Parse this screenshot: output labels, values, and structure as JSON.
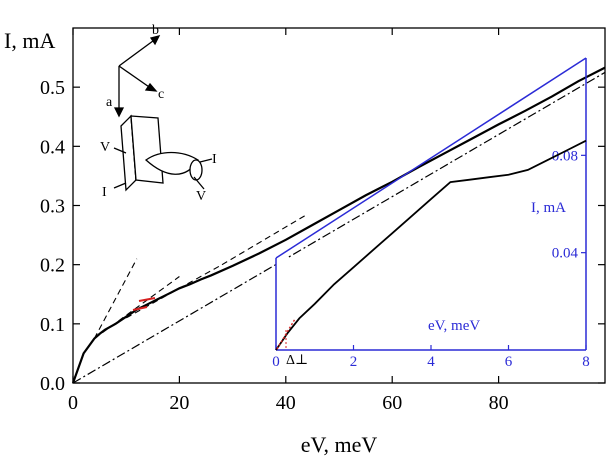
{
  "chart_data": [
    {
      "type": "line",
      "xlabel": "eV, meV",
      "ylabel": "I, mA",
      "xlim": [
        0,
        100
      ],
      "ylim": [
        0,
        0.6
      ],
      "x_ticks": [
        "0",
        "20",
        "40",
        "60",
        "80"
      ],
      "y_ticks": [
        "0.0",
        "0.1",
        "0.2",
        "0.3",
        "0.4",
        "0.5"
      ],
      "series": [
        {
          "style": "solid",
          "x": [
            0,
            2,
            4,
            5,
            6,
            8,
            10,
            12,
            14,
            16,
            18,
            20,
            22,
            24,
            26,
            30,
            35,
            40,
            45,
            50,
            55,
            60,
            65,
            70,
            75,
            80,
            85,
            90,
            95,
            100
          ],
          "y": [
            0,
            0.05,
            0.075,
            0.083,
            0.09,
            0.1,
            0.112,
            0.124,
            0.133,
            0.142,
            0.151,
            0.16,
            0.167,
            0.175,
            0.182,
            0.198,
            0.219,
            0.242,
            0.267,
            0.292,
            0.317,
            0.34,
            0.365,
            0.389,
            0.413,
            0.437,
            0.46,
            0.484,
            0.51,
            0.533
          ]
        },
        {
          "style": "dash-dot",
          "x": [
            0,
            100
          ],
          "y": [
            0,
            0.525
          ]
        },
        {
          "style": "dashed",
          "x": [
            4,
            12
          ],
          "y": [
            0.075,
            0.21
          ]
        },
        {
          "style": "dashed",
          "x": [
            4,
            20
          ],
          "y": [
            0.075,
            0.18
          ]
        },
        {
          "style": "dashed",
          "x": [
            10,
            28
          ],
          "y": [
            0.11,
            0.2
          ]
        },
        {
          "style": "dashed",
          "x": [
            28,
            44
          ],
          "y": [
            0.2,
            0.285
          ]
        }
      ],
      "inset": {
        "xlabel": "eV, meV",
        "ylabel": "I, mA",
        "xlim": [
          0,
          8
        ],
        "ylim": [
          0,
          0.12
        ],
        "x_ticks": [
          "0",
          "2",
          "4",
          "6",
          "8"
        ],
        "y_ticks": [
          "0.04",
          "0.08"
        ],
        "annotation": "Δ⊥",
        "series": [
          {
            "x": [
              0,
              0.3,
              0.6,
              1,
              1.5,
              2,
              2.5,
              3,
              3.5,
              4,
              4.5,
              5,
              5.5,
              6,
              6.5,
              7,
              7.5,
              8
            ],
            "y": [
              0,
              0.007,
              0.013,
              0.019,
              0.027,
              0.034,
              0.041,
              0.048,
              0.055,
              0.062,
              0.069,
              0.07,
              0.071,
              0.072,
              0.074,
              0.078,
              0.082,
              0.086
            ]
          }
        ]
      },
      "schematic_labels": [
        "a",
        "b",
        "c",
        "V",
        "I",
        "I",
        "V"
      ]
    }
  ]
}
